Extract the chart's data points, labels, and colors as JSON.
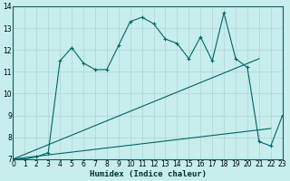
{
  "xlabel": "Humidex (Indice chaleur)",
  "bg_color": "#c8eded",
  "line_color": "#006666",
  "grid_color": "#b0d4d4",
  "ylim": [
    7,
    14
  ],
  "xlim": [
    0,
    23
  ],
  "yticks": [
    7,
    8,
    9,
    10,
    11,
    12,
    13,
    14
  ],
  "xticks": [
    0,
    1,
    2,
    3,
    4,
    5,
    6,
    7,
    8,
    9,
    10,
    11,
    12,
    13,
    14,
    15,
    16,
    17,
    18,
    19,
    20,
    21,
    22,
    23
  ],
  "line1_x": [
    0,
    1,
    2,
    3,
    4,
    5,
    6,
    7,
    8,
    9,
    10,
    11,
    12,
    13,
    14,
    15,
    16,
    17,
    18,
    19,
    20,
    21,
    22,
    23
  ],
  "line1_y": [
    7.0,
    7.0,
    7.1,
    7.3,
    11.5,
    12.1,
    11.4,
    11.1,
    11.1,
    12.2,
    13.3,
    13.5,
    13.2,
    12.5,
    12.3,
    11.6,
    12.6,
    11.5,
    13.7,
    11.6,
    11.2,
    7.8,
    7.6,
    9.0
  ],
  "line2_x": [
    0,
    21
  ],
  "line2_y": [
    7.0,
    11.6
  ],
  "line3_x": [
    0,
    22
  ],
  "line3_y": [
    7.0,
    8.4
  ]
}
